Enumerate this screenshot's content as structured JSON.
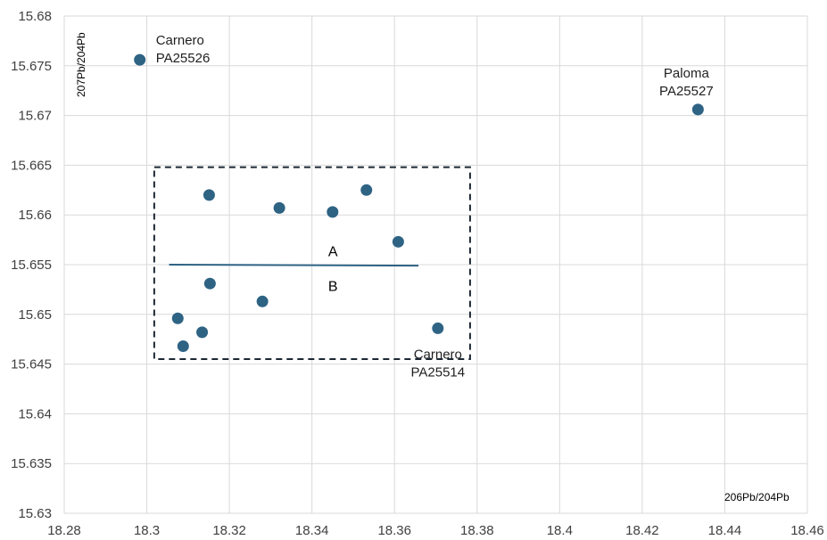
{
  "chart_data": {
    "type": "scatter",
    "xlabel": "206Pb/204Pb",
    "ylabel": "207Pb/204Pb",
    "xlim": [
      18.28,
      18.46
    ],
    "ylim": [
      15.63,
      15.68
    ],
    "x_ticks": [
      "18.28",
      "18.3",
      "18.32",
      "18.34",
      "18.36",
      "18.38",
      "18.4",
      "18.42",
      "18.44",
      "18.46"
    ],
    "y_ticks": [
      "15.63",
      "15.635",
      "15.64",
      "15.645",
      "15.65",
      "15.655",
      "15.66",
      "15.665",
      "15.67",
      "15.675",
      "15.68"
    ],
    "grid": true,
    "marker_color": "#2e6384",
    "points": [
      {
        "x": 18.2983,
        "y": 15.6756,
        "label": [
          "Carnero",
          "PA25526"
        ]
      },
      {
        "x": 18.4335,
        "y": 15.6706,
        "label": [
          "Paloma",
          "PA25527"
        ]
      },
      {
        "x": 18.3151,
        "y": 15.662
      },
      {
        "x": 18.3321,
        "y": 15.6607
      },
      {
        "x": 18.345,
        "y": 15.6603
      },
      {
        "x": 18.3532,
        "y": 15.6625
      },
      {
        "x": 18.3609,
        "y": 15.6573
      },
      {
        "x": 18.3153,
        "y": 15.6531
      },
      {
        "x": 18.328,
        "y": 15.6513
      },
      {
        "x": 18.3075,
        "y": 15.6496
      },
      {
        "x": 18.3134,
        "y": 15.6482
      },
      {
        "x": 18.3088,
        "y": 15.6468
      },
      {
        "x": 18.3705,
        "y": 15.6486,
        "label": [
          "Carnero",
          "PA25514"
        ]
      }
    ],
    "region": {
      "x": [
        18.3018,
        18.3783
      ],
      "y": [
        15.6455,
        15.6648
      ]
    },
    "divider": {
      "x": [
        18.3054,
        18.3658
      ],
      "y": [
        15.655,
        15.6549
      ]
    },
    "region_labels": [
      {
        "text": "A",
        "x": 18.3451,
        "y": 15.6564
      },
      {
        "text": "B",
        "x": 18.3451,
        "y": 15.6529
      }
    ]
  }
}
